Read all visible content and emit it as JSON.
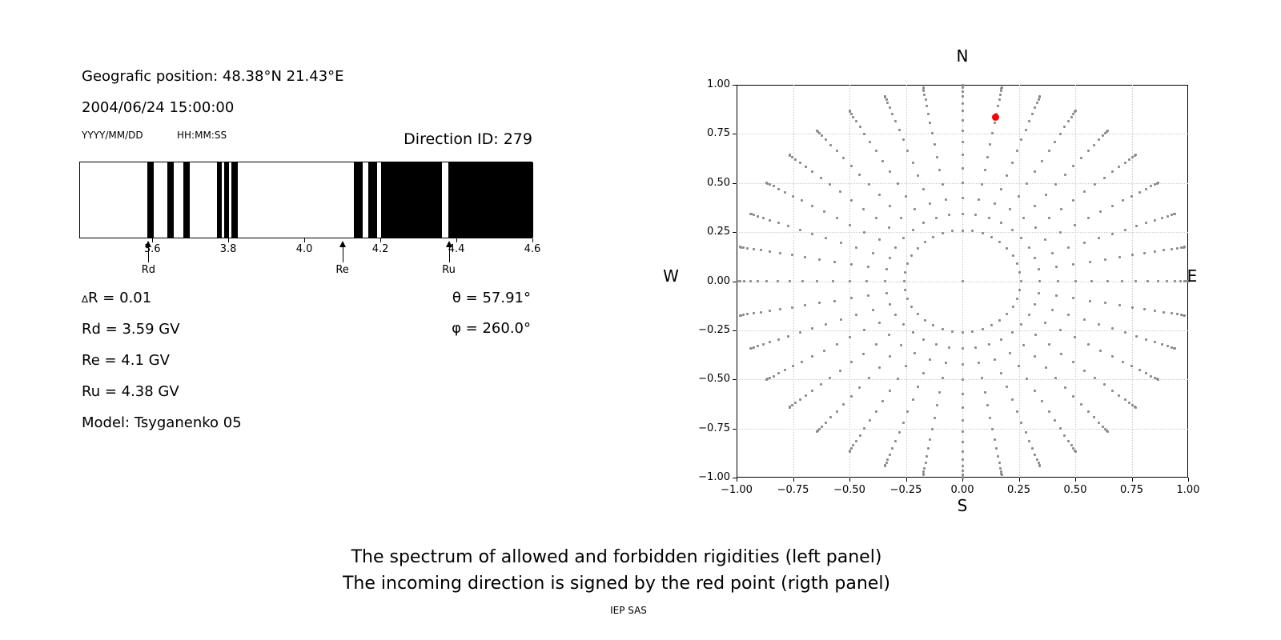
{
  "colors": {
    "background": "#ffffff",
    "forbidden_band": "#000000",
    "ray_dots": "#8a8a8a",
    "red_point": "#ff0000",
    "grid": "#cccccc",
    "text": "#000000"
  },
  "header": {
    "position_line": "Geografic position: 48.38°N 21.43°E",
    "datetime_line": "2004/06/24 15:00:00",
    "date_format_hint": "YYYY/MM/DD",
    "time_format_hint": "HH:MM:SS",
    "direction_id_line": "Direction ID: 279"
  },
  "left_panel": {
    "delta_symbol": "∆",
    "delta_rest": "R = 0.01",
    "line_rd": "Rd = 3.59 GV",
    "line_re": "Re = 4.1 GV",
    "line_ru": "Ru = 4.38 GV",
    "line_model": "Model: Tsyganenko 05",
    "theta_line": "θ = 57.91°",
    "phi_line": "φ = 260.0°"
  },
  "compass": {
    "n": "N",
    "s": "S",
    "e": "E",
    "w": "W"
  },
  "caption": {
    "line1": "The spectrum of allowed and forbidden rigidities (left panel)",
    "line2": "The incoming direction is signed by the red point (rigth panel)",
    "credit": "IEP SAS"
  },
  "chart_data": [
    {
      "type": "bar",
      "title": "Rigidity spectrum (allowed = white, forbidden = black)",
      "xlim": [
        3.408,
        4.6
      ],
      "xticks": [
        3.6,
        3.8,
        4.0,
        4.2,
        4.4,
        4.6
      ],
      "bar_color": "#000000",
      "forbidden_intervals_gv": [
        [
          3.585,
          3.601
        ],
        [
          3.637,
          3.655
        ],
        [
          3.68,
          3.697
        ],
        [
          3.768,
          3.781
        ],
        [
          3.788,
          3.8
        ],
        [
          3.805,
          3.822
        ],
        [
          4.129,
          4.151
        ],
        [
          4.167,
          4.189
        ],
        [
          4.199,
          4.36
        ],
        [
          4.377,
          4.6
        ]
      ],
      "markers": [
        {
          "label": "Rd",
          "x": 3.59
        },
        {
          "label": "Re",
          "x": 4.1
        },
        {
          "label": "Ru",
          "x": 4.38
        }
      ],
      "values": {
        "delta_R": 0.01,
        "Rd_GV": 3.59,
        "Re_GV": 4.1,
        "Ru_GV": 4.38,
        "model": "Tsyganenko 05"
      }
    },
    {
      "type": "scatter",
      "title": "Incoming direction map (N/E/S/W)",
      "xlim": [
        -1,
        1
      ],
      "ylim": [
        -1,
        1
      ],
      "xticks": [
        -1.0,
        -0.75,
        -0.5,
        -0.25,
        0.0,
        0.25,
        0.5,
        0.75,
        1.0
      ],
      "yticks": [
        -1.0,
        -0.75,
        -0.5,
        -0.25,
        0.0,
        0.25,
        0.5,
        0.75,
        1.0
      ],
      "grid": true,
      "grid_step": 0.25,
      "rays": {
        "azimuth_start_deg": 0,
        "azimuth_step_deg": 10,
        "azimuth_count": 36,
        "zenith_start_deg": 15,
        "zenith_end_deg": 90,
        "zenith_step_deg": 5,
        "radius_rule": "sin(zenith)"
      },
      "center_point": [
        0,
        0
      ],
      "dot_color": "#8a8a8a",
      "red_point": {
        "theta_deg": 57.91,
        "phi_deg": 260.0,
        "x": 0.147,
        "y": 0.834,
        "color": "#ff0000"
      }
    }
  ]
}
